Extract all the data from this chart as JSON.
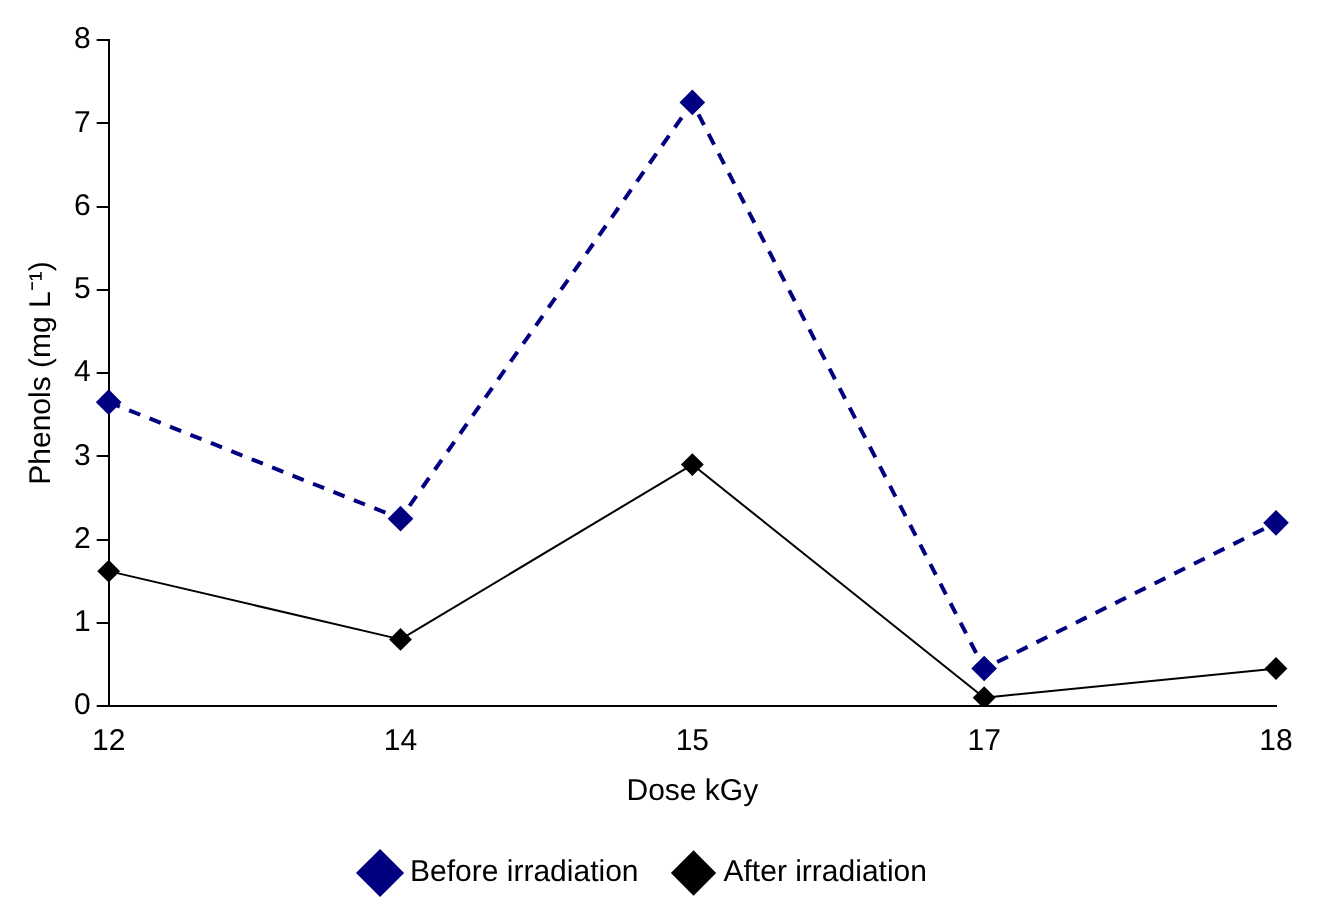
{
  "chart_data": {
    "type": "line",
    "xlabel": "Dose kGy",
    "ylabel": "Phenols (mg L⁻¹)",
    "categories": [
      "12",
      "14",
      "15",
      "17",
      "18"
    ],
    "series": [
      {
        "name": "Before irradiation",
        "color": "#000080",
        "values": [
          3.65,
          2.25,
          7.25,
          0.45,
          2.2
        ],
        "line_style": "dashed",
        "marker": "diamond"
      },
      {
        "name": "After irradiation",
        "color": "#000000",
        "values": [
          1.62,
          0.8,
          2.9,
          0.1,
          0.45
        ],
        "line_style": "solid",
        "marker": "diamond"
      }
    ],
    "ylim": [
      0,
      8
    ],
    "yticks": [
      0,
      1,
      2,
      3,
      4,
      5,
      6,
      7,
      8
    ],
    "grid": false,
    "legend": "bottom"
  }
}
